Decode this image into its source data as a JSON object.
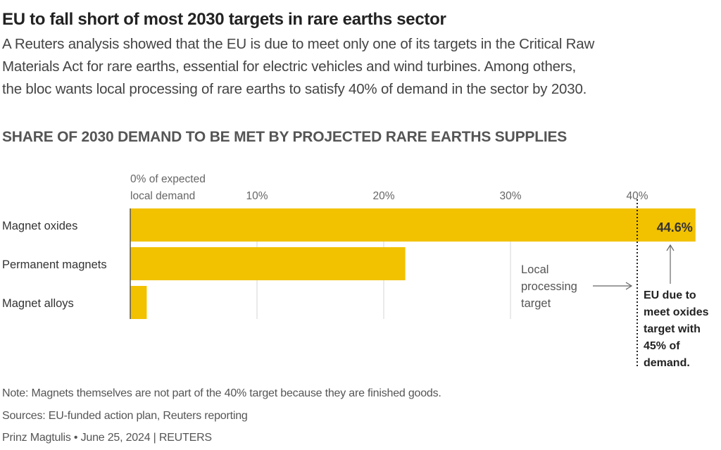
{
  "title": "EU to fall short of most 2030 targets in rare earths sector",
  "subtitle_lines": [
    "A Reuters analysis showed that the EU is due to meet only one of its targets in the Critical Raw",
    "Materials Act for rare earths, essential for electric vehicles and wind turbines. Among others,",
    "the bloc wants local processing of rare earths to satisfy 40% of demand in the sector by 2030."
  ],
  "chart_data": {
    "type": "bar",
    "orientation": "horizontal",
    "title": "SHARE OF 2030 DEMAND TO BE MET BY PROJECTED RARE EARTHS SUPPLIES",
    "categories": [
      "Magnet oxides",
      "Permanent magnets",
      "Magnet alloys"
    ],
    "values": [
      44.6,
      21.7,
      1.3
    ],
    "data_labels": [
      "44.6%",
      "",
      ""
    ],
    "xlim": [
      0,
      45
    ],
    "ticks": [
      0,
      10,
      20,
      30,
      40
    ],
    "tick_labels": [
      "0% of  expected|local demand",
      "10%",
      "20%",
      "30%",
      "40%"
    ],
    "grid": true,
    "bar_color": "#F2C100",
    "reference_line": {
      "value": 40,
      "style": "dotted"
    },
    "annotations": [
      {
        "lines": [
          "Local",
          "processing",
          "target"
        ]
      },
      {
        "lines": [
          "EU due to",
          "meet oxides",
          "target with",
          "45% of",
          "demand."
        ]
      }
    ]
  },
  "footer": {
    "note": "Note: Magnets themselves are not part of the 40% target because they are finished goods.",
    "sources": "Sources: EU-funded action plan, Reuters reporting",
    "credit": "Prinz Magtulis • June 25, 2024 | REUTERS"
  }
}
